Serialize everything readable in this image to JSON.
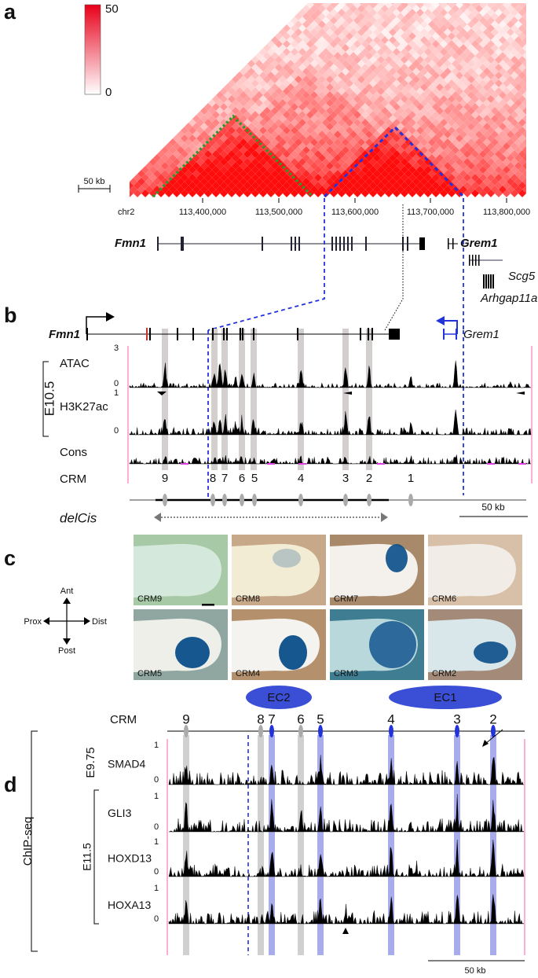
{
  "panel_a": {
    "label": "a",
    "colorbar_max": "50",
    "colorbar_min": "0",
    "scale": "50 kb",
    "chrom": "chr2",
    "coords": [
      "113,400,000",
      "113,500,000",
      "113,600,000",
      "113,700,000",
      "113,800,000"
    ],
    "genes": [
      "Fmn1",
      "Grem1",
      "Scg5",
      "Arhgap11a"
    ]
  },
  "panel_b": {
    "label": "b",
    "genes": [
      "Fmn1",
      "Grem1"
    ],
    "stage": "E10.5",
    "tracks": [
      {
        "name": "ATAC",
        "ymax": "3",
        "ymin": "0"
      },
      {
        "name": "H3K27ac",
        "ymax": "1",
        "ymin": "0"
      },
      {
        "name": "Cons"
      }
    ],
    "crm_title": "CRM",
    "crms": [
      "9",
      "8",
      "7",
      "6",
      "5",
      "4",
      "3",
      "2",
      "1"
    ],
    "deletion": "delCis",
    "scale": "50 kb"
  },
  "panel_c": {
    "label": "c",
    "compass": {
      "ant": "Ant",
      "post": "Post",
      "prox": "Prox",
      "dist": "Dist"
    },
    "images": [
      "CRM9",
      "CRM8",
      "CRM7",
      "CRM6",
      "CRM5",
      "CRM4",
      "CRM3",
      "CRM2"
    ]
  },
  "panel_d": {
    "label": "d",
    "clusters": [
      "EC2",
      "EC1"
    ],
    "crm_title": "CRM",
    "crms": [
      "9",
      "8",
      "7",
      "6",
      "5",
      "4",
      "3",
      "2"
    ],
    "assay": "ChIP-seq",
    "stages": [
      "E9.75",
      "E11.5"
    ],
    "tracks": [
      {
        "name": "SMAD4",
        "ymax": "1",
        "ymin": "0"
      },
      {
        "name": "GLI3",
        "ymax": "1",
        "ymin": "0"
      },
      {
        "name": "HOXD13",
        "ymax": "1",
        "ymin": "0"
      },
      {
        "name": "HOXA13",
        "ymax": "1",
        "ymin": "0"
      }
    ],
    "scale": "50 kb"
  }
}
